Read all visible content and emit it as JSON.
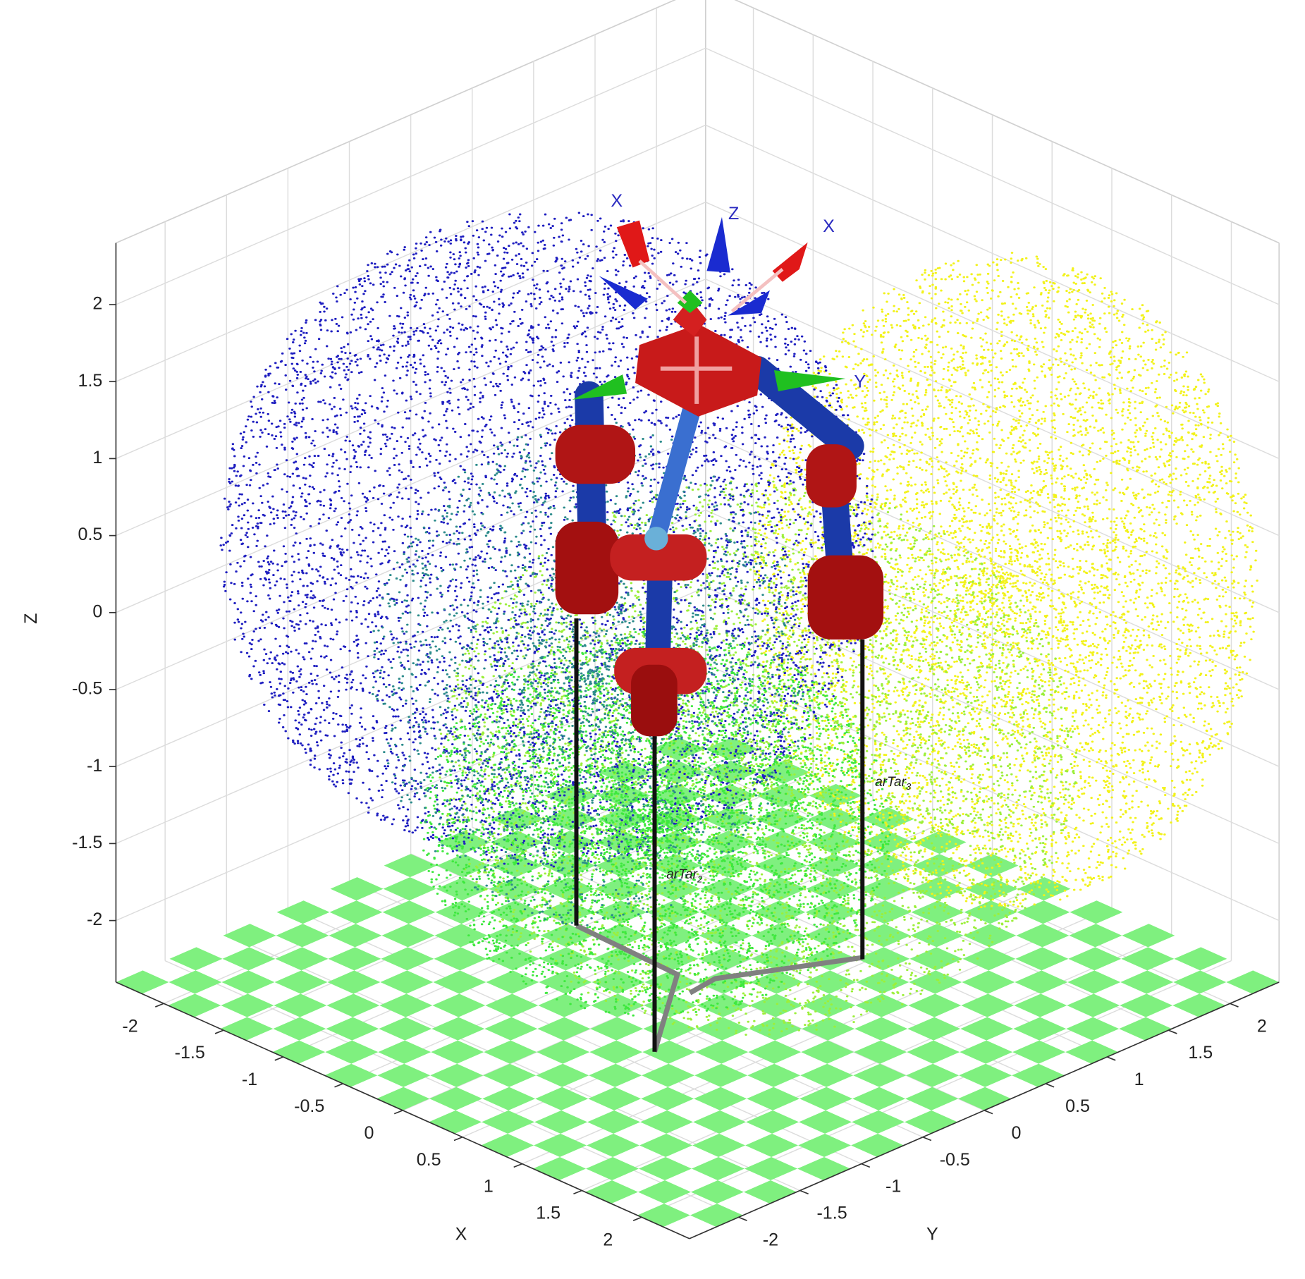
{
  "chart_data": {
    "type": "scatter3d",
    "xlabel": "X",
    "ylabel": "Y",
    "zlabel": "Z",
    "xlim": [
      -2.4,
      2.4
    ],
    "ylim": [
      -2.4,
      2.4
    ],
    "zlim": [
      -2.4,
      2.4
    ],
    "xticks": [
      -2,
      -1.5,
      -1,
      -0.5,
      0,
      0.5,
      1,
      1.5,
      2
    ],
    "yticks": [
      -2,
      -1.5,
      -1,
      -0.5,
      0,
      0.5,
      1,
      1.5,
      2
    ],
    "zticks": [
      -2,
      -1.5,
      -1,
      -0.5,
      0,
      0.5,
      1,
      1.5,
      2
    ],
    "grid": true,
    "annotations": [
      {
        "text": "X"
      },
      {
        "text": "Z"
      },
      {
        "text": "X"
      },
      {
        "text": "Y"
      },
      {
        "text": "arTar",
        "sub": "2"
      },
      {
        "text": "arTar",
        "sub": "3"
      }
    ]
  }
}
